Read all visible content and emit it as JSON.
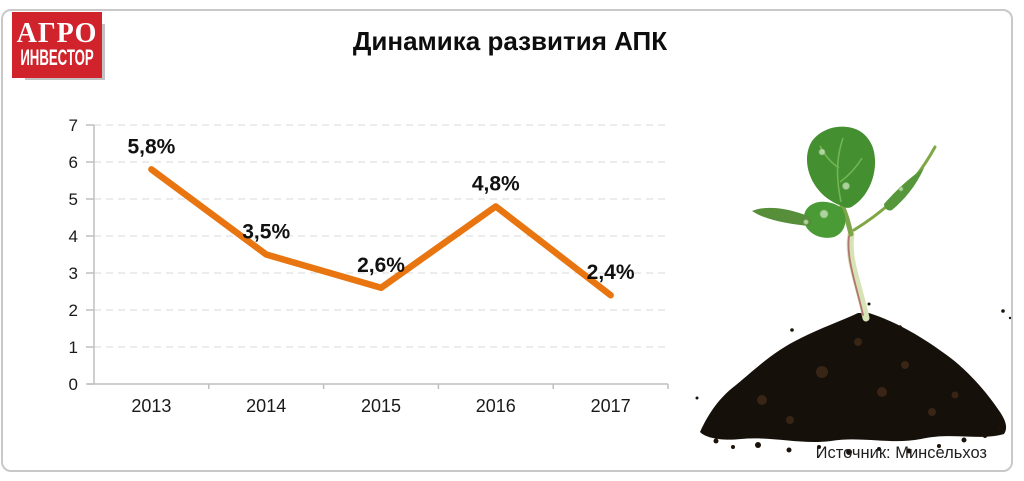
{
  "logo": {
    "line1": "АГРО",
    "line2": "ИНВЕСТОР",
    "background_color": "#d0232b"
  },
  "title": "Динамика развития АПК",
  "source": "Источник: Минсельхоз",
  "chart_data": {
    "type": "line",
    "title": "Динамика развития АПК",
    "categories": [
      "2013",
      "2014",
      "2015",
      "2016",
      "2017"
    ],
    "values": [
      5.8,
      3.5,
      2.6,
      4.8,
      2.4
    ],
    "point_labels": [
      "5,8%",
      "3,5%",
      "2,6%",
      "4,8%",
      "2,4%"
    ],
    "xlabel": "",
    "ylabel": "",
    "ylim": [
      0,
      7
    ],
    "ytick_step": 1,
    "grid": true,
    "legend": "none",
    "line_color": "#e8750f",
    "grid_color": "#d9d9d9",
    "axis_color": "#bfbfbf",
    "label_color": "#111111",
    "tick_label_color": "#1a1a1a"
  }
}
